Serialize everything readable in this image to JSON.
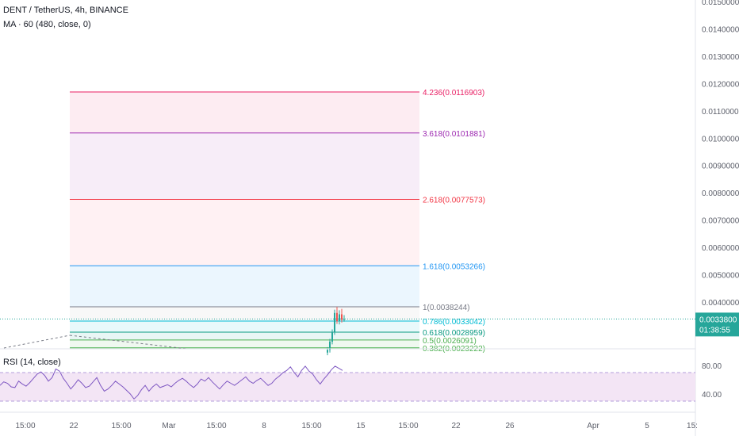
{
  "header": {
    "symbol": "DENT / TetherUS, 4h, BINANCE",
    "indicator": "MA · 60 (480, close, 0)",
    "rsi_label": "RSI (14, close)"
  },
  "price_badge": {
    "price": "0.0033800",
    "countdown": "01:38:55"
  },
  "colors": {
    "up": "#26a69a",
    "down": "#ef5350",
    "rsi_line": "#7e57c2",
    "rsi_band": "#f3e5f5",
    "price_line": "#26a69a",
    "axis_text": "#5d606b"
  },
  "chart_data": {
    "type": "candlestick",
    "price_axis": {
      "min": 0.002,
      "max": 0.015,
      "ticks": [
        "0.0150000",
        "0.0140000",
        "0.0130000",
        "0.0120000",
        "0.0110000",
        "0.0100000",
        "0.0090000",
        "0.0080000",
        "0.0070000",
        "0.0060000",
        "0.0050000",
        "0.0040000"
      ]
    },
    "time_axis": {
      "ticks": [
        "15:00",
        "22",
        "15:00",
        "Mar",
        "15:00",
        "8",
        "15:00",
        "15",
        "15:00",
        "22",
        "26",
        "Apr",
        "5",
        "15:"
      ]
    },
    "fib_levels": [
      {
        "label": "4.236(0.0116903)",
        "price": 0.0116903,
        "color": "#e91e63",
        "fill": "#fce4ec"
      },
      {
        "label": "3.618(0.0101881)",
        "price": 0.0101881,
        "color": "#9c27b0",
        "fill": "#f3e5f5"
      },
      {
        "label": "2.618(0.0077573)",
        "price": 0.0077573,
        "color": "#f23645",
        "fill": "#ffebee"
      },
      {
        "label": "1.618(0.0053266)",
        "price": 0.0053266,
        "color": "#2196f3",
        "fill": "#e3f2fd"
      },
      {
        "label": "1(0.0038244)",
        "price": 0.0038244,
        "color": "#787b86",
        "fill": "#f5f5f5"
      },
      {
        "label": "0.786(0.0033042)",
        "price": 0.0033042,
        "color": "#00bcd4",
        "fill": "#e0f7fa"
      },
      {
        "label": "0.618(0.0028959)",
        "price": 0.0028959,
        "color": "#089981",
        "fill": "#e0f2f1"
      },
      {
        "label": "0.5(0.0026091)",
        "price": 0.0026091,
        "color": "#4caf50",
        "fill": "#e8f5e9"
      },
      {
        "label": "0.382(0.0023222)",
        "price": 0.0023222,
        "color": "#4caf50",
        "fill": "#e8f5e9"
      }
    ],
    "candles": [
      {
        "o": 0.00215,
        "h": 0.00235,
        "l": 0.00205,
        "c": 0.00225
      },
      {
        "o": 0.00225,
        "h": 0.00265,
        "l": 0.00215,
        "c": 0.00255
      },
      {
        "o": 0.00255,
        "h": 0.003,
        "l": 0.00245,
        "c": 0.0029
      },
      {
        "o": 0.0029,
        "h": 0.00372,
        "l": 0.0028,
        "c": 0.0036
      },
      {
        "o": 0.0036,
        "h": 0.00382,
        "l": 0.0032,
        "c": 0.0033
      },
      {
        "o": 0.0033,
        "h": 0.0037,
        "l": 0.00318,
        "c": 0.00355
      },
      {
        "o": 0.00355,
        "h": 0.00375,
        "l": 0.00325,
        "c": 0.00335
      },
      {
        "o": 0.00335,
        "h": 0.00352,
        "l": 0.00328,
        "c": 0.00338
      }
    ],
    "current_price": 0.00338,
    "rsi": {
      "ticks": [
        "80.00",
        "40.00"
      ],
      "upper": 70,
      "lower": 30,
      "values": [
        52,
        57,
        55,
        50,
        49,
        58,
        54,
        51,
        56,
        62,
        68,
        71,
        66,
        58,
        63,
        75,
        72,
        62,
        55,
        47,
        53,
        60,
        55,
        49,
        51,
        57,
        63,
        52,
        44,
        47,
        52,
        58,
        54,
        50,
        45,
        40,
        33,
        38,
        46,
        52,
        44,
        50,
        54,
        49,
        51,
        53,
        50,
        55,
        59,
        62,
        58,
        53,
        49,
        54,
        61,
        58,
        63,
        57,
        52,
        47,
        53,
        58,
        55,
        52,
        56,
        60,
        64,
        58,
        55,
        59,
        62,
        57,
        52,
        55,
        61,
        65,
        70,
        73,
        78,
        70,
        64,
        73,
        79,
        72,
        68,
        60,
        54,
        61,
        67,
        74,
        79,
        76,
        73
      ]
    }
  }
}
